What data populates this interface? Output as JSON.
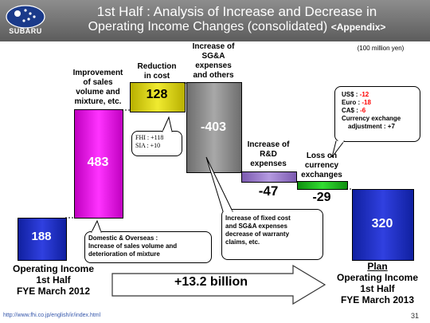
{
  "header": {
    "title_line1": "1st Half : Analysis of Increase and Decrease in",
    "title_line2": "Operating Income Changes (consolidated)",
    "title_appendix": "<Appendix>",
    "logo_text": "SUBARU"
  },
  "unit_label": "(100 million yen)",
  "chart_data": {
    "type": "bar",
    "subtype": "waterfall",
    "unit": "100 million yen",
    "categories": [
      "Operating Income 1st Half FYE March 2012",
      "Improvement of sales volume and mixture, etc.",
      "Reduction in cost",
      "Increase of SG&A expenses and others",
      "Increase of R&D expenses",
      "Loss on currency exchanges",
      "Plan Operating Income 1st Half FYE March 2013"
    ],
    "values": [
      188,
      483,
      128,
      -403,
      -47,
      -29,
      320
    ],
    "value_labels": [
      "188",
      "483",
      "128",
      "-403",
      "-47",
      "-29",
      "320"
    ],
    "colors": {
      "total": "#2030c0",
      "sales": "#ff00ff",
      "cost": "#d8cf10",
      "sga": "#8c8c8c",
      "rd": "#9a78c8",
      "fx": "#22bb22"
    }
  },
  "bars": {
    "start_label": [
      "Operating Income",
      "1st Half",
      "FYE March 2012"
    ],
    "sales_label": [
      "Improvement",
      "of sales",
      "volume and",
      "mixture, etc."
    ],
    "cost_label": [
      "Reduction",
      "in cost"
    ],
    "sga_label": [
      "Increase of",
      "SG&A",
      "expenses",
      "and others"
    ],
    "rd_label": [
      "Increase of",
      "R&D",
      "expenses"
    ],
    "fx_label": [
      "Loss on",
      "currency",
      "exchanges"
    ],
    "end_label": [
      "Plan",
      "Operating Income",
      "1st Half",
      "FYE March 2013"
    ]
  },
  "callouts": {
    "cost_breakdown": [
      "FHI : +118",
      "SIA : +10"
    ],
    "domestic": [
      "Domestic & Overseas :",
      "Increase of sales volume and",
      "deterioration of mixture"
    ],
    "fixed_cost": [
      "Increase of fixed cost",
      "and SG&A expenses",
      "decrease of warranty",
      "claims, etc."
    ],
    "currency": {
      "rows": [
        {
          "label": "US$ : ",
          "value": "-12"
        },
        {
          "label": "Euro : ",
          "value": "-18"
        },
        {
          "label": "CA$ : ",
          "value": "-6"
        }
      ],
      "note_line1": "Currency exchange",
      "note_line2": "adjustment : +7"
    }
  },
  "growth_arrow_label": "+13.2 billion",
  "footer": {
    "url": "http://www.fhi.co.jp/english/ir/index.html",
    "page_number": "31"
  }
}
